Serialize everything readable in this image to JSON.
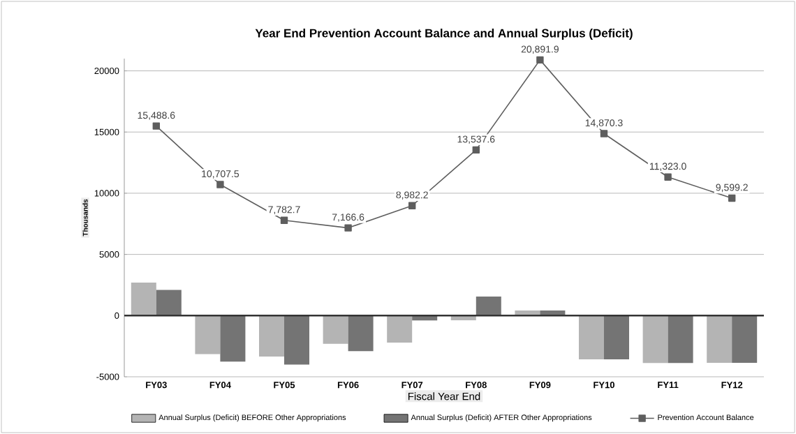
{
  "chart_data": {
    "type": "bar",
    "title": "Year End Prevention Account Balance and Annual Surplus (Deficit)",
    "xlabel": "Fiscal Year End",
    "ylabel": "Thousands",
    "categories": [
      "FY03",
      "FY04",
      "FY05",
      "FY06",
      "FY07",
      "FY08",
      "FY09",
      "FY10",
      "FY11",
      "FY12"
    ],
    "series": [
      {
        "name": "Annual Surplus (Deficit) BEFORE Other Appropriations",
        "color": "#b4b4b4",
        "values": [
          2700,
          -3140,
          -3350,
          -2300,
          -2200,
          -380,
          420,
          -3570,
          -3880,
          -3860
        ]
      },
      {
        "name": "Annual Surplus (Deficit) AFTER Other Appropriations",
        "color": "#747474",
        "values": [
          2100,
          -3760,
          -4000,
          -2900,
          -400,
          1560,
          420,
          -3570,
          -3880,
          -3860
        ]
      },
      {
        "name": "Prevention Account Balance",
        "type": "line",
        "color": "#5e5e5e",
        "marker": "square",
        "values": [
          15488.6,
          10707.5,
          7782.7,
          7166.6,
          8982.2,
          13537.6,
          20891.9,
          14870.3,
          11323.0,
          9599.2
        ],
        "value_labels": [
          "15,488.6",
          "10,707.5",
          "7,782.7",
          "7,166.6",
          "8,982.2",
          "13,537.6",
          "20,891.9",
          "14,870.3",
          "11,323.0",
          "9,599.2"
        ]
      }
    ],
    "ylim": [
      -5000,
      21000
    ],
    "yticks": [
      -5000,
      0,
      5000,
      10000,
      15000,
      20000
    ],
    "grid": "y",
    "legend": "bottom"
  }
}
